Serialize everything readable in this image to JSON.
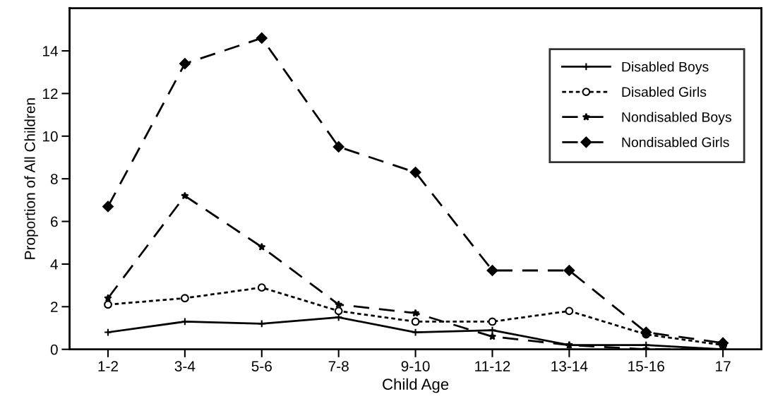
{
  "chart_data": {
    "type": "line",
    "xlabel": "Child Age",
    "ylabel": "Proportion of All Children",
    "categories": [
      "1-2",
      "3-4",
      "5-6",
      "7-8",
      "9-10",
      "11-12",
      "13-14",
      "15-16",
      "17"
    ],
    "ylim": [
      0,
      16
    ],
    "yticks": [
      0,
      2,
      4,
      6,
      8,
      10,
      12,
      14
    ],
    "grid": false,
    "legend": "top right",
    "series": [
      {
        "name": "Disabled Boys",
        "color": "#000000",
        "marker": "cross",
        "line_style": "solid",
        "values": [
          0.8,
          1.3,
          1.2,
          1.5,
          0.8,
          0.9,
          0.2,
          0.2,
          0.0
        ]
      },
      {
        "name": "Disabled Girls",
        "color": "#000000",
        "marker": "circle",
        "line_style": "dotted",
        "values": [
          2.1,
          2.4,
          2.9,
          1.8,
          1.3,
          1.3,
          1.8,
          0.7,
          0.2
        ]
      },
      {
        "name": "Nondisabled Boys",
        "color": "#000000",
        "marker": "star",
        "line_style": "dashed",
        "values": [
          2.4,
          7.2,
          4.8,
          2.1,
          1.7,
          0.6,
          0.2,
          0.0,
          0.0
        ]
      },
      {
        "name": "Nondisabled Girls",
        "color": "#000000",
        "marker": "diamond",
        "line_style": "dashed",
        "values": [
          6.7,
          13.4,
          14.6,
          9.5,
          8.3,
          3.7,
          3.7,
          0.8,
          0.3
        ]
      }
    ]
  }
}
